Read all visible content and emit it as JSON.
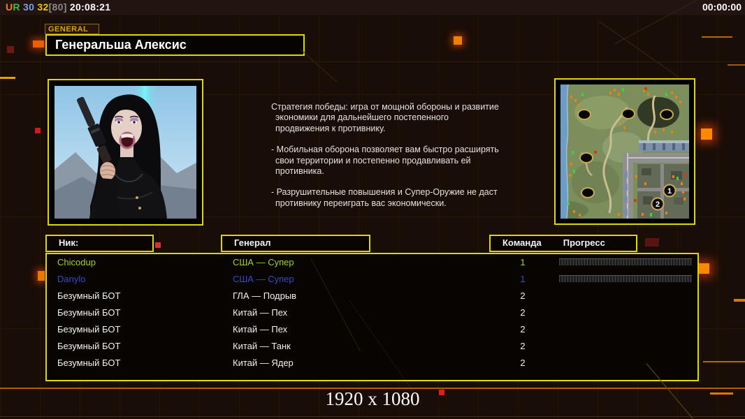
{
  "top_bar": {
    "items": [
      {
        "text": "U",
        "color": "#ff7b1e"
      },
      {
        "text": "R",
        "color": "#3fbf3f"
      },
      {
        "text": " 30",
        "color": "#7aa0f0"
      },
      {
        "text": " 32",
        "color": "#f0c800"
      },
      {
        "text": "[80]",
        "color": "#8a8a8a"
      },
      {
        "text": " 20:08:21",
        "color": "#ffffff"
      }
    ],
    "timer": "00:00:00"
  },
  "general_tab": "GENERAL",
  "title": "Генеральша Алексис",
  "strategy": {
    "p1": "Стратегия победы: игра от мощной обороны и развитие экономики для дальнейшего постепенного продвижения к противнику.",
    "p2": "- Мобильная оборона позволяет вам быстро расширять свои территории и постепенно продавливать ей противника.",
    "p3": "- Разрушительные повышения и Супер-Оружие не даст противнику переиграть вас экономически."
  },
  "table": {
    "headers": {
      "nick": "Ник:",
      "general": "Генерал",
      "team": "Команда",
      "progress": "Прогресс"
    },
    "rows": [
      {
        "nick": "Chicodup",
        "general": "США — Супер",
        "team": "1",
        "color": "#a6d01e",
        "progress_bar": true
      },
      {
        "nick": "Danylo",
        "general": "США — Супер",
        "team": "1",
        "color": "#3748cf",
        "progress_bar": true
      },
      {
        "nick": "Безумный БОТ",
        "general": "ГЛА — Подрыв",
        "team": "2",
        "color": "#f2f2f2",
        "progress_bar": false
      },
      {
        "nick": "Безумный БОТ",
        "general": "Китай — Пех",
        "team": "2",
        "color": "#f2f2f2",
        "progress_bar": false
      },
      {
        "nick": "Безумный БОТ",
        "general": "Китай — Пех",
        "team": "2",
        "color": "#f2f2f2",
        "progress_bar": false
      },
      {
        "nick": "Безумный БОТ",
        "general": "Китай — Танк",
        "team": "2",
        "color": "#f2f2f2",
        "progress_bar": false
      },
      {
        "nick": "Безумный БОТ",
        "general": "Китай — Ядер",
        "team": "2",
        "color": "#f2f2f2",
        "progress_bar": false
      }
    ]
  },
  "minimap": {
    "markers": [
      "1",
      "2"
    ]
  },
  "footer": {
    "resolution": "1920 x 1080"
  }
}
